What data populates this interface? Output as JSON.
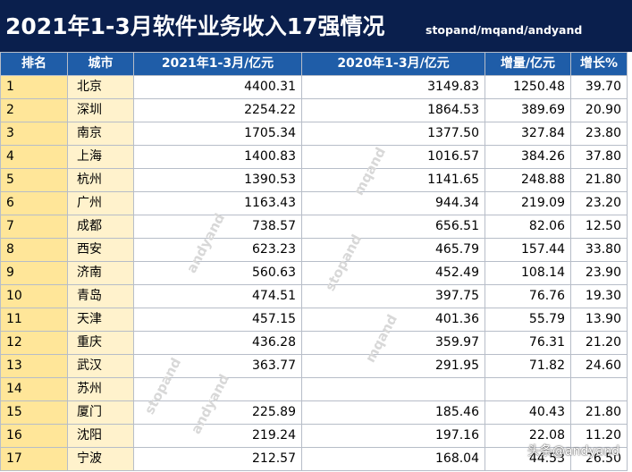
{
  "title": "2021年1-3月软件业务收入17强情况",
  "subtitle": "stopand/mqand/andyand",
  "headers": [
    "排名",
    "城市",
    "2021年1-3月/亿元",
    "2020年1-3月/亿元",
    "增量/亿元",
    "增长%"
  ],
  "rows": [
    [
      "1",
      "北京",
      "4400.31",
      "3149.83",
      "1250.48",
      "39.70"
    ],
    [
      "2",
      "深圳",
      "2254.22",
      "1864.53",
      "389.69",
      "20.90"
    ],
    [
      "3",
      "南京",
      "1705.34",
      "1377.50",
      "327.84",
      "23.80"
    ],
    [
      "4",
      "上海",
      "1400.83",
      "1016.57",
      "384.26",
      "37.80"
    ],
    [
      "5",
      "杭州",
      "1390.53",
      "1141.65",
      "248.88",
      "21.80"
    ],
    [
      "6",
      "广州",
      "1163.43",
      "944.34",
      "219.09",
      "23.20"
    ],
    [
      "7",
      "成都",
      "738.57",
      "656.51",
      "82.06",
      "12.50"
    ],
    [
      "8",
      "西安",
      "623.23",
      "465.79",
      "157.44",
      "33.80"
    ],
    [
      "9",
      "济南",
      "560.63",
      "452.49",
      "108.14",
      "23.90"
    ],
    [
      "10",
      "青岛",
      "474.51",
      "397.75",
      "76.76",
      "19.30"
    ],
    [
      "11",
      "天津",
      "457.15",
      "401.36",
      "55.79",
      "13.90"
    ],
    [
      "12",
      "重庆",
      "436.28",
      "359.97",
      "76.31",
      "21.20"
    ],
    [
      "13",
      "武汉",
      "363.77",
      "291.95",
      "71.82",
      "24.60"
    ],
    [
      "14",
      "苏州",
      "",
      "",
      "",
      ""
    ],
    [
      "15",
      "厦门",
      "225.89",
      "185.46",
      "40.43",
      "21.80"
    ],
    [
      "16",
      "沈阳",
      "219.24",
      "197.16",
      "22.08",
      "11.20"
    ],
    [
      "17",
      "宁波",
      "212.57",
      "168.04",
      "44.53",
      "26.50"
    ]
  ],
  "watermarks": {
    "mqand": "mqand",
    "andyand": "andyand",
    "stopand": "stopand"
  },
  "footer_mark": "头条@andyand",
  "colors": {
    "title_bg": "#0a1f4d",
    "header_bg": "#1f5da8",
    "rank_bg": "#ffe699",
    "city_bg": "#fff2cc"
  }
}
